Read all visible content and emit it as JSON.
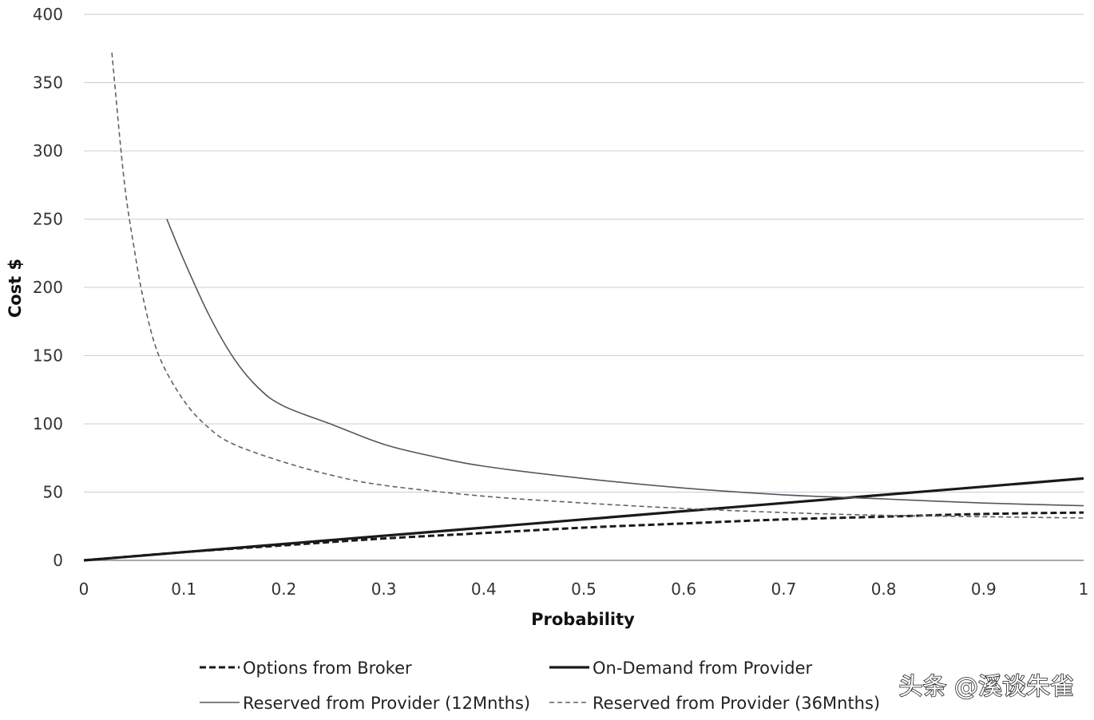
{
  "chart_data": {
    "type": "line",
    "title": "",
    "xlabel": "Probability",
    "ylabel": "Cost $",
    "xlim": [
      0,
      1
    ],
    "ylim": [
      0,
      400
    ],
    "x_ticks": [
      0,
      0.1,
      0.2,
      0.3,
      0.4,
      0.5,
      0.6,
      0.7,
      0.8,
      0.9,
      1
    ],
    "x_tick_labels": [
      "0",
      "0.1",
      "0.2",
      "0.3",
      "0.4",
      "0.5",
      "0.6",
      "0.7",
      "0.8",
      "0.9",
      "1"
    ],
    "y_ticks": [
      0,
      50,
      100,
      150,
      200,
      250,
      300,
      350,
      400
    ],
    "y_tick_labels": [
      "0",
      "50",
      "100",
      "150",
      "200",
      "250",
      "300",
      "350",
      "400"
    ],
    "grid": "horizontal",
    "legend_position": "bottom",
    "series": [
      {
        "name": "Options from Broker",
        "style": "dashed-bold",
        "color": "#1a1a1a",
        "x": [
          0,
          0.1,
          0.2,
          0.3,
          0.4,
          0.5,
          0.6,
          0.7,
          0.8,
          0.9,
          1
        ],
        "values": [
          0,
          6,
          11,
          16,
          20,
          24,
          27,
          30,
          32,
          34,
          35
        ]
      },
      {
        "name": "On-Demand from Provider",
        "style": "solid-bold",
        "color": "#1a1a1a",
        "x": [
          0,
          0.1,
          0.2,
          0.3,
          0.4,
          0.5,
          0.6,
          0.7,
          0.8,
          0.9,
          1
        ],
        "values": [
          0,
          6,
          12,
          18,
          24,
          30,
          36,
          42,
          48,
          54,
          60
        ]
      },
      {
        "name": "Reserved from Provider (12Mnths)",
        "style": "solid-thin",
        "color": "#555560",
        "x": [
          0.083,
          0.1,
          0.125,
          0.15,
          0.175,
          0.2,
          0.25,
          0.3,
          0.35,
          0.4,
          0.5,
          0.6,
          0.7,
          0.8,
          0.9,
          1
        ],
        "values": [
          250,
          220,
          180,
          148,
          126,
          113,
          99,
          85,
          76,
          69,
          60,
          53,
          48,
          45,
          42,
          40
        ]
      },
      {
        "name": "Reserved from Provider (36Mnths)",
        "style": "dashed-thin",
        "color": "#6a5c6a",
        "x": [
          0.028,
          0.04,
          0.05,
          0.06,
          0.075,
          0.1,
          0.125,
          0.15,
          0.2,
          0.25,
          0.3,
          0.4,
          0.5,
          0.6,
          0.7,
          0.8,
          0.9,
          1
        ],
        "values": [
          372,
          280,
          230,
          190,
          150,
          117,
          97,
          85,
          72,
          62,
          55,
          47,
          42,
          38,
          35,
          33,
          32,
          31
        ]
      }
    ]
  },
  "watermark": "头条 @溪谈朱雀"
}
